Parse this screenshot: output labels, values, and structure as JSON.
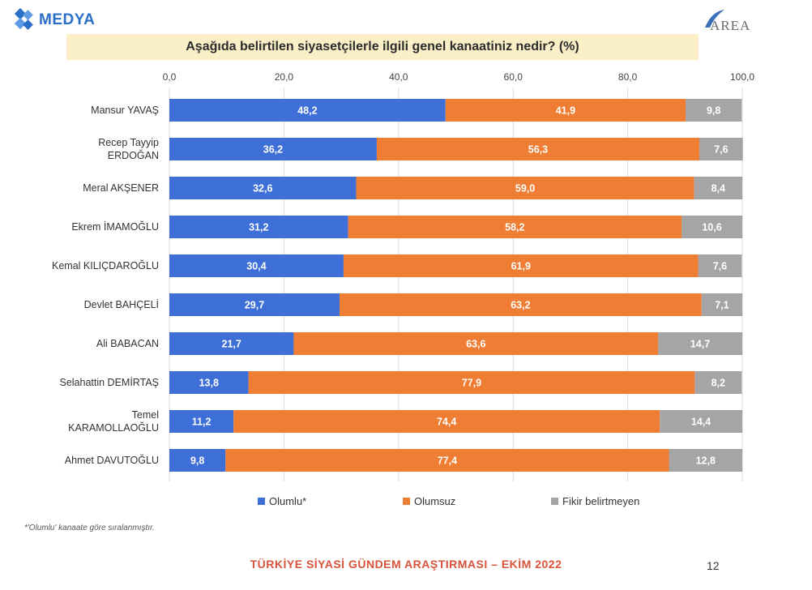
{
  "header": {
    "left_logo": "MEDYA",
    "right_logo": "AREA",
    "title": "Aşağıda belirtilen siyasetçilerle ilgili genel kanaatiniz nedir? (%)"
  },
  "chart_data": {
    "type": "bar",
    "orientation": "horizontal",
    "stacked": true,
    "title": "Aşağıda belirtilen siyasetçilerle ilgili genel kanaatiniz nedir? (%)",
    "xlim": [
      0,
      100
    ],
    "x_ticks": [
      "0,0",
      "20,0",
      "40,0",
      "60,0",
      "80,0",
      "100,0"
    ],
    "x_tick_values": [
      0,
      20,
      40,
      60,
      80,
      100
    ],
    "grid": true,
    "legend_position": "bottom",
    "categories": [
      [
        "Mansur YAVAŞ"
      ],
      [
        "Recep Tayyip",
        "ERDOĞAN"
      ],
      [
        "Meral AKŞENER"
      ],
      [
        "Ekrem İMAMOĞLU"
      ],
      [
        "Kemal KILIÇDAROĞLU"
      ],
      [
        "Devlet BAHÇELİ"
      ],
      [
        "Ali BABACAN"
      ],
      [
        "Selahattin DEMİRTAŞ"
      ],
      [
        "Temel",
        "KARAMOLLAOĞLU"
      ],
      [
        "Ahmet DAVUTOĞLU"
      ]
    ],
    "series": [
      {
        "name": "Olumlu*",
        "color": "#3e6fd8",
        "values": [
          48.2,
          36.2,
          32.6,
          31.2,
          30.4,
          29.7,
          21.7,
          13.8,
          11.2,
          9.8
        ],
        "labels": [
          "48,2",
          "36,2",
          "32,6",
          "31,2",
          "30,4",
          "29,7",
          "21,7",
          "13,8",
          "11,2",
          "9,8"
        ]
      },
      {
        "name": "Olumsuz",
        "color": "#ef7d33",
        "values": [
          41.9,
          56.3,
          59.0,
          58.2,
          61.9,
          63.2,
          63.6,
          77.9,
          74.4,
          77.4
        ],
        "labels": [
          "41,9",
          "56,3",
          "59,0",
          "58,2",
          "61,9",
          "63,2",
          "63,6",
          "77,9",
          "74,4",
          "77,4"
        ]
      },
      {
        "name": "Fikir belirtmeyen",
        "color": "#a5a5a5",
        "values": [
          9.8,
          7.6,
          8.4,
          10.6,
          7.6,
          7.1,
          14.7,
          8.2,
          14.4,
          12.8
        ],
        "labels": [
          "9,8",
          "7,6",
          "8,4",
          "10,6",
          "7,6",
          "7,1",
          "14,7",
          "8,2",
          "14,4",
          "12,8"
        ]
      }
    ]
  },
  "footnote": "*'Olumlu' kanaate göre sıralanmıştır.",
  "footer": "TÜRKİYE SİYASİ GÜNDEM ARAŞTIRMASI – EKİM 2022",
  "page_number": "12"
}
